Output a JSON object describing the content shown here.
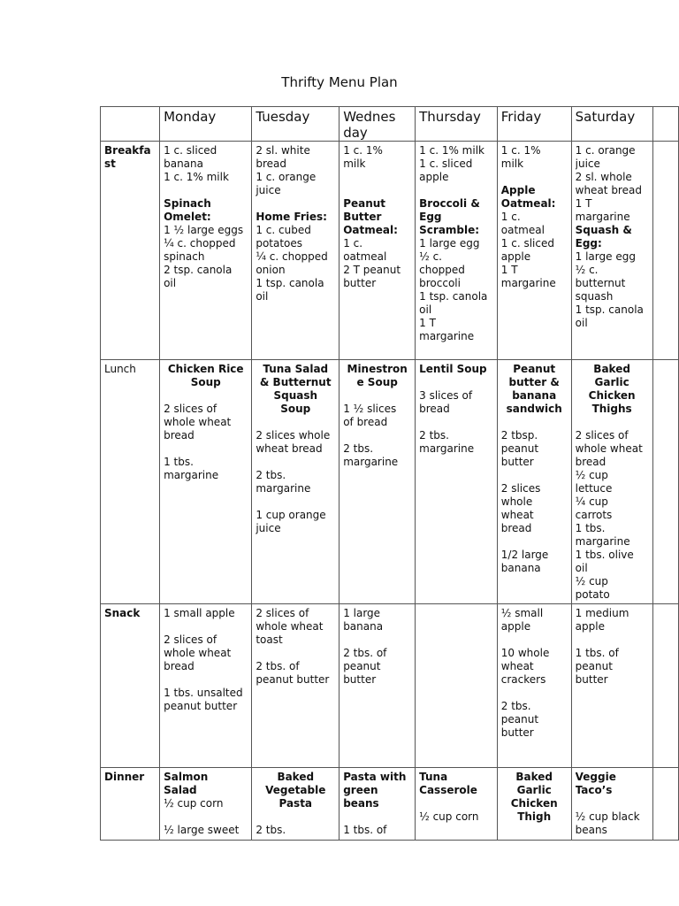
{
  "title": "Thrifty Menu Plan",
  "headers": [
    "",
    "Monday",
    "Tuesday",
    [
      "Wednes",
      "day"
    ],
    "Thursday",
    "Friday",
    "Saturday",
    ""
  ],
  "rows": [
    {
      "label": [
        "Breakfa",
        "st"
      ],
      "cells": [
        [
          "1 c. sliced",
          "banana",
          "1 c. 1% milk",
          "",
          {
            "b": "Spinach"
          },
          {
            "b": "Omelet:"
          },
          "1 ½ large eggs",
          "¼ c. chopped",
          "spinach",
          "2 tsp. canola",
          "oil"
        ],
        [
          "2 sl. white",
          "bread",
          "1 c. orange",
          "juice",
          "",
          {
            "b": "Home Fries:"
          },
          "1 c. cubed",
          "potatoes",
          "¼ c. chopped",
          "onion",
          "1 tsp. canola",
          "oil"
        ],
        [
          "1 c. 1%",
          "milk",
          "",
          "",
          {
            "b": "Peanut"
          },
          {
            "b": "Butter"
          },
          {
            "b": "Oatmeal:"
          },
          "1 c.",
          "oatmeal",
          "2 T peanut",
          "butter"
        ],
        [
          "1 c. 1% milk",
          "1 c. sliced",
          "apple",
          "",
          {
            "b": "Broccoli &"
          },
          {
            "b": "Egg"
          },
          {
            "b": "Scramble:"
          },
          "1 large egg",
          "½ c.",
          "chopped",
          "broccoli",
          "1 tsp. canola",
          "oil",
          "1 T",
          "margarine"
        ],
        [
          "1 c. 1%",
          "milk",
          "",
          {
            "b": "Apple"
          },
          {
            "b": "Oatmeal:"
          },
          "1 c.",
          "oatmeal",
          "1 c. sliced",
          "apple",
          "1 T",
          "margarine"
        ],
        [
          "1 c. orange",
          "juice",
          "2 sl. whole",
          "wheat bread",
          "1 T",
          "margarine",
          {
            "b": "Squash &"
          },
          {
            "b": "Egg:"
          },
          "1 large egg",
          "½ c.",
          "butternut",
          "squash",
          "1 tsp. canola",
          "oil"
        ],
        []
      ]
    },
    {
      "label": [
        "Lunch"
      ],
      "labelBold": false,
      "cells": [
        [
          {
            "b": "Chicken Rice",
            "c": 1
          },
          {
            "b": "Soup",
            "c": 1
          },
          "",
          "2 slices of",
          "whole wheat",
          "bread",
          "",
          "1 tbs.",
          "margarine"
        ],
        [
          {
            "b": "Tuna Salad",
            "c": 1
          },
          {
            "b": "& Butternut",
            "c": 1
          },
          {
            "b": "Squash",
            "c": 1
          },
          {
            "b": "Soup",
            "c": 1
          },
          "",
          "2 slices whole",
          "wheat bread",
          "",
          "2 tbs.",
          "margarine",
          "",
          "1 cup orange",
          "juice"
        ],
        [
          {
            "b": "Minestron",
            "c": 1
          },
          {
            "b": "e Soup",
            "c": 1
          },
          "",
          "1 ½ slices",
          "of bread",
          "",
          "2 tbs.",
          "margarine"
        ],
        [
          {
            "b": "Lentil Soup"
          },
          "",
          "3 slices of",
          "bread",
          "",
          "2 tbs.",
          "margarine"
        ],
        [
          {
            "b": "Peanut",
            "c": 1
          },
          {
            "b": "butter &",
            "c": 1
          },
          {
            "b": "banana",
            "c": 1
          },
          {
            "b": "sandwich",
            "c": 1
          },
          "",
          "2 tbsp.",
          "peanut",
          "butter",
          "",
          "2 slices",
          "whole",
          "wheat",
          "bread",
          "",
          "1/2 large",
          "banana"
        ],
        [
          {
            "b": "Baked",
            "c": 1
          },
          {
            "b": "Garlic",
            "c": 1
          },
          {
            "b": "Chicken",
            "c": 1
          },
          {
            "b": "Thighs",
            "c": 1
          },
          "",
          "2 slices of",
          "whole wheat",
          "bread",
          "½ cup",
          "lettuce",
          "¼ cup",
          "carrots",
          "1 tbs.",
          "margarine",
          "1 tbs. olive",
          "oil",
          "½ cup",
          "potato"
        ],
        []
      ]
    },
    {
      "label": [
        "Snack"
      ],
      "cells": [
        [
          "1 small apple",
          "",
          "2 slices of",
          "whole wheat",
          "bread",
          "",
          "1 tbs. unsalted",
          "peanut butter"
        ],
        [
          "2 slices of",
          "whole wheat",
          "toast",
          "",
          "2 tbs. of",
          "peanut butter"
        ],
        [
          "1 large",
          "banana",
          "",
          "2 tbs. of",
          "peanut",
          "butter"
        ],
        [],
        [
          "½ small",
          "apple",
          "",
          "10 whole",
          "wheat",
          "crackers",
          "",
          "2 tbs.",
          "peanut",
          "butter"
        ],
        [
          "1 medium",
          "apple",
          "",
          "1 tbs. of",
          "peanut",
          "butter"
        ],
        []
      ]
    },
    {
      "label": [
        "Dinner"
      ],
      "cells": [
        [
          {
            "b": "Salmon"
          },
          {
            "b": "Salad"
          },
          "½ cup corn",
          "",
          "½ large sweet"
        ],
        [
          {
            "b": "Baked",
            "c": 1
          },
          {
            "b": "Vegetable",
            "c": 1
          },
          {
            "b": "Pasta",
            "c": 1
          },
          "",
          "2 tbs."
        ],
        [
          {
            "b": "Pasta with"
          },
          {
            "b": "green"
          },
          {
            "b": "beans"
          },
          "",
          "1 tbs. of"
        ],
        [
          {
            "b": "Tuna"
          },
          {
            "b": "Casserole"
          },
          "",
          "½ cup corn"
        ],
        [
          {
            "b": "Baked",
            "c": 1
          },
          {
            "b": "Garlic",
            "c": 1
          },
          {
            "b": "Chicken",
            "c": 1
          },
          {
            "b": "Thigh",
            "c": 1
          }
        ],
        [
          {
            "b": "Veggie"
          },
          {
            "b": "Taco’s"
          },
          "",
          "½ cup black",
          "beans"
        ],
        []
      ]
    }
  ]
}
